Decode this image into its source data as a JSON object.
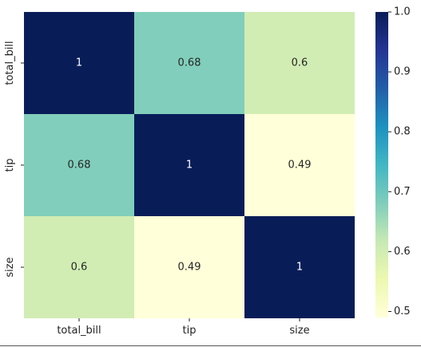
{
  "chart_data": {
    "type": "heatmap",
    "categories_x": [
      "total_bill",
      "tip",
      "size"
    ],
    "categories_y": [
      "total_bill",
      "tip",
      "size"
    ],
    "values": [
      [
        1,
        0.68,
        0.6
      ],
      [
        0.68,
        1,
        0.49
      ],
      [
        0.6,
        0.49,
        1
      ]
    ],
    "value_labels": [
      [
        "1",
        "0.68",
        "0.6"
      ],
      [
        "0.68",
        "1",
        "0.49"
      ],
      [
        "0.6",
        "0.49",
        "1"
      ]
    ],
    "colorbar": {
      "range": [
        0.49,
        1.0
      ],
      "ticks": [
        0.5,
        0.6,
        0.7,
        0.8,
        0.9,
        1.0
      ],
      "tick_labels": [
        "0.5",
        "0.6",
        "0.7",
        "0.8",
        "0.9",
        "1.0"
      ]
    },
    "colormap": "YlGnBu",
    "colormap_stops": [
      "#ffffd9",
      "#edf8b1",
      "#c7e9b4",
      "#7fcdbb",
      "#41b6c4",
      "#1d91c0",
      "#225ea8",
      "#253494",
      "#081d58"
    ],
    "annotation_colors": {
      "light": "#ffffff",
      "dark": "#262626"
    }
  }
}
